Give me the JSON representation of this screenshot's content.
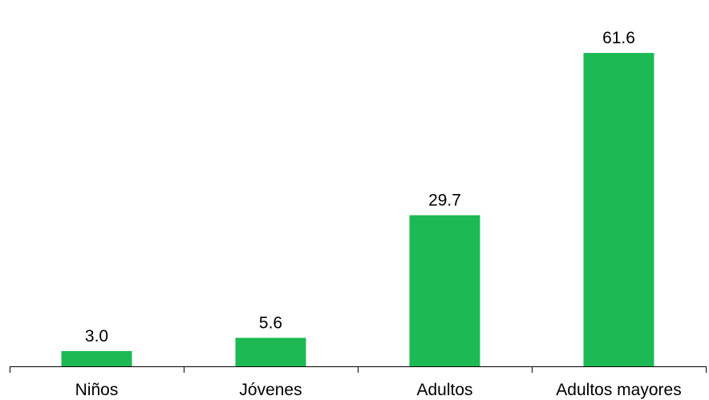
{
  "chart_data": {
    "type": "bar",
    "categories": [
      "Niños",
      "Jóvenes",
      "Adultos",
      "Adultos mayores"
    ],
    "values": [
      3.0,
      5.6,
      29.7,
      61.6
    ],
    "data_labels": [
      "3.0",
      "5.6",
      "29.7",
      "61.6"
    ],
    "title": "",
    "xlabel": "",
    "ylabel": "",
    "ylim": [
      0,
      64.6
    ],
    "grid": false,
    "legend": "none",
    "bar_color": "#1db954",
    "axis_color": "#000000"
  }
}
